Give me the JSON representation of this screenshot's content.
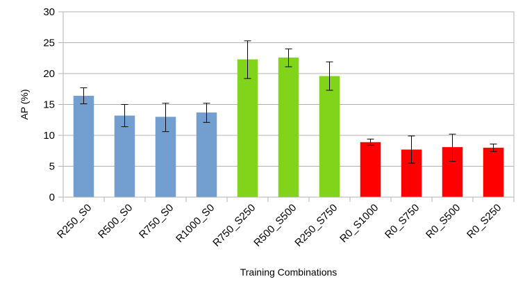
{
  "chart_data": {
    "type": "bar",
    "title": "",
    "xlabel": "Training Combinations",
    "ylabel": "AP (%)",
    "ylim": [
      0,
      30
    ],
    "yticks": [
      0,
      5,
      10,
      15,
      20,
      25,
      30
    ],
    "grid": "horizontal",
    "legend": "none",
    "categories": [
      "R250_S0",
      "R500_S0",
      "R750_S0",
      "R1000_S0",
      "R750_S250",
      "R500_S500",
      "R250_S750",
      "R0_S1000",
      "R0_S750",
      "R0_S500",
      "R0_S250"
    ],
    "values": [
      16.4,
      13.2,
      13.0,
      13.7,
      22.3,
      22.6,
      19.6,
      8.9,
      7.7,
      8.1,
      8.0
    ],
    "error_low": [
      15.1,
      11.4,
      10.6,
      12.1,
      19.2,
      21.1,
      17.3,
      8.4,
      5.5,
      5.8,
      7.4
    ],
    "error_high": [
      17.7,
      15.0,
      15.2,
      15.2,
      25.3,
      24.0,
      21.9,
      9.4,
      9.9,
      10.2,
      8.6
    ],
    "bar_colors": [
      "#729fcf",
      "#729fcf",
      "#729fcf",
      "#729fcf",
      "#81d41a",
      "#81d41a",
      "#81d41a",
      "#ff0000",
      "#ff0000",
      "#ff0000",
      "#ff0000"
    ]
  }
}
